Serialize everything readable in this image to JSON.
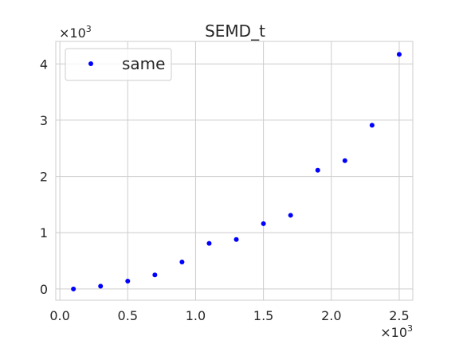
{
  "chart_data": {
    "type": "scatter",
    "title": "SEMD_t",
    "xlabel": "",
    "ylabel": "",
    "x_multiplier_label": "×10",
    "x_multiplier_exp": "3",
    "y_multiplier_label": "×10",
    "y_multiplier_exp": "3",
    "xlim": [
      -0.03,
      2.6
    ],
    "ylim": [
      -0.2,
      4.4
    ],
    "x_ticks": [
      0.0,
      0.5,
      1.0,
      1.5,
      2.0,
      2.5
    ],
    "x_tick_labels": [
      "0.0",
      "0.5",
      "1.0",
      "1.5",
      "2.0",
      "2.5"
    ],
    "y_ticks": [
      0,
      1,
      2,
      3,
      4
    ],
    "y_tick_labels": [
      "0",
      "1",
      "2",
      "3",
      "4"
    ],
    "grid": true,
    "legend_position": "top-left",
    "series": [
      {
        "name": "same",
        "color": "#0000ff",
        "marker": "circle",
        "x": [
          0.1,
          0.3,
          0.5,
          0.7,
          0.9,
          1.1,
          1.3,
          1.5,
          1.7,
          1.9,
          2.1,
          2.3,
          2.5
        ],
        "y": [
          0.0,
          0.05,
          0.14,
          0.25,
          0.48,
          0.81,
          0.88,
          1.16,
          1.31,
          2.11,
          2.28,
          2.91,
          4.17
        ]
      }
    ]
  }
}
